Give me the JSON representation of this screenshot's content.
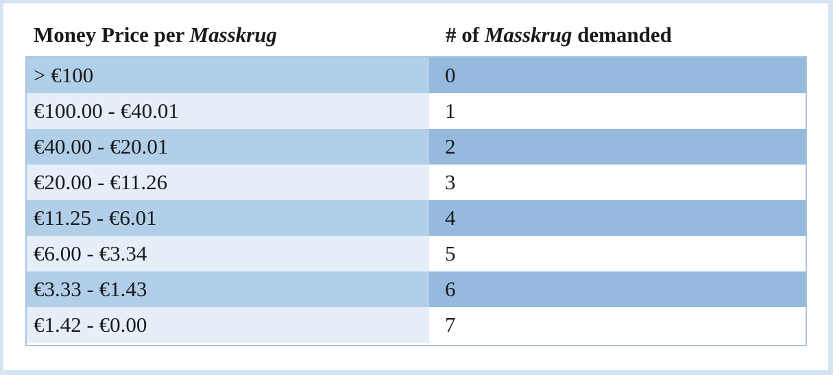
{
  "header": {
    "col1_prefix": "Money Price per ",
    "col1_italic": "Masskrug",
    "col2_prefix": "# of ",
    "col2_italic": "Masskrug",
    "col2_suffix": " demanded"
  },
  "rows": [
    {
      "price": "> €100",
      "qty": "0"
    },
    {
      "price": "€100.00 - €40.01",
      "qty": "1"
    },
    {
      "price": "€40.00 - €20.01",
      "qty": "2"
    },
    {
      "price": "€20.00 - €11.26",
      "qty": "3"
    },
    {
      "price": "€11.25 - €6.01",
      "qty": "4"
    },
    {
      "price": "€6.00 - €3.34",
      "qty": "5"
    },
    {
      "price": "€3.33 - €1.43",
      "qty": "6"
    },
    {
      "price": "€1.42 - €0.00",
      "qty": "7"
    }
  ],
  "colors": {
    "outer_background": "#d6e3f1",
    "dark_price_cell": "#b2cfe9",
    "dark_qty_cell": "#95bade",
    "light_price_cell": "#e6eef8",
    "light_qty_cell": "#ffffff",
    "table_border": "#a6c4e2"
  }
}
